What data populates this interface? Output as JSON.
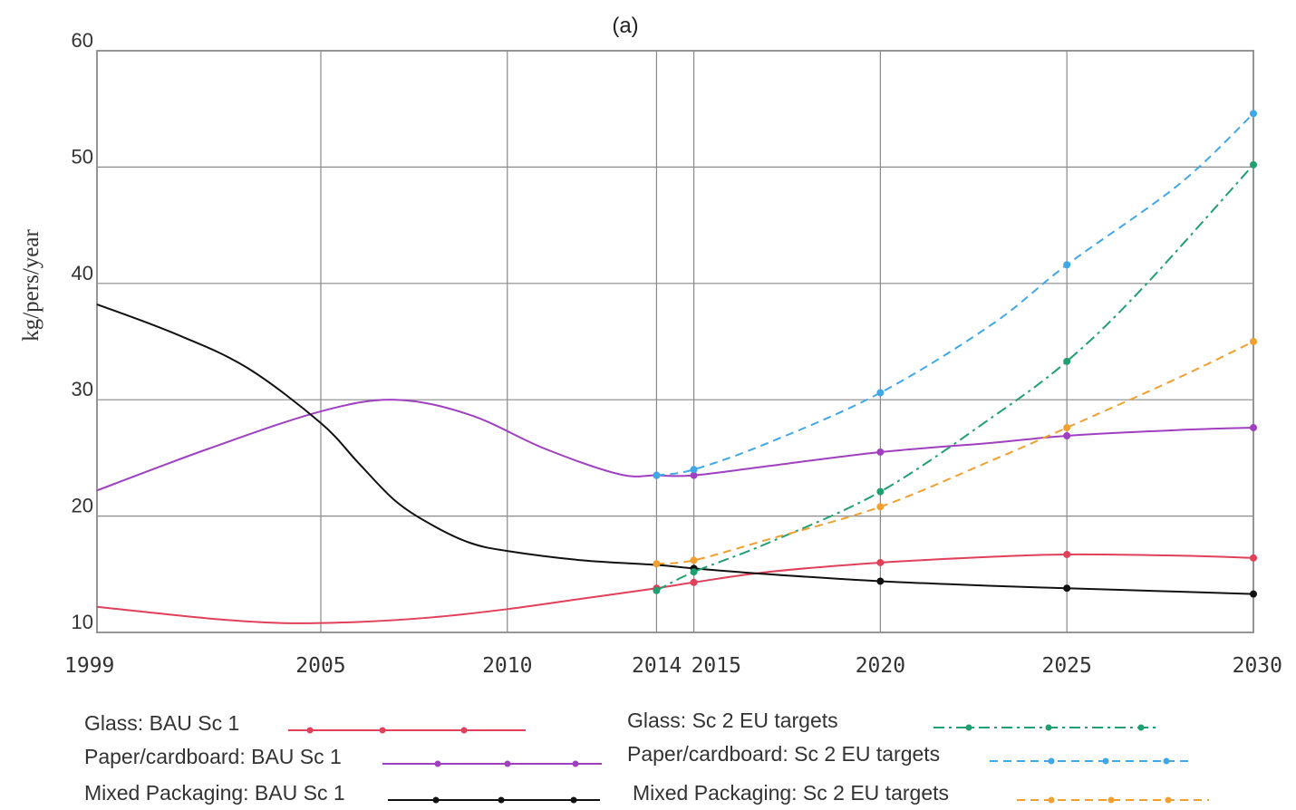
{
  "chart_data": {
    "type": "line",
    "title": "(a)",
    "ylabel": "kg/pers/year",
    "xlabel": "",
    "xlim": [
      1999,
      2030
    ],
    "ylim": [
      10,
      60
    ],
    "x_ticks": [
      1999,
      2005,
      2010,
      2014,
      2015,
      2020,
      2025,
      2030
    ],
    "y_ticks": [
      10,
      20,
      30,
      40,
      50,
      60
    ],
    "grid": true,
    "legend_placement": "bottom",
    "series": [
      {
        "name": "Glass: BAU Sc 1",
        "color": "#e0405a",
        "style": "solid",
        "x": [
          1999,
          2002,
          2004,
          2006,
          2008,
          2010,
          2012,
          2014,
          2015,
          2017,
          2020,
          2023,
          2025,
          2028,
          2030
        ],
        "y": [
          12.2,
          11.2,
          10.8,
          10.9,
          11.3,
          12.0,
          12.9,
          13.8,
          14.3,
          15.2,
          16.0,
          16.5,
          16.7,
          16.6,
          16.4
        ],
        "markers_at": [
          2014,
          2015,
          2020,
          2025,
          2030
        ]
      },
      {
        "name": "Paper/cardboard: BAU Sc 1",
        "color": "#a040c0",
        "style": "solid",
        "x": [
          1999,
          2002,
          2005,
          2007,
          2009,
          2011,
          2013,
          2014,
          2015,
          2017,
          2020,
          2023,
          2025,
          2028,
          2030
        ],
        "y": [
          22.2,
          25.8,
          29.0,
          30.0,
          28.7,
          25.8,
          23.6,
          23.5,
          23.5,
          24.3,
          25.5,
          26.3,
          26.9,
          27.4,
          27.6
        ],
        "markers_at": [
          2014,
          2015,
          2020,
          2025,
          2030
        ]
      },
      {
        "name": "Mixed Packaging: BAU Sc 1",
        "color": "#111111",
        "style": "solid",
        "x": [
          1999,
          2001,
          2003,
          2005,
          2006,
          2007,
          2008,
          2009,
          2010,
          2012,
          2014,
          2015,
          2017,
          2020,
          2023,
          2025,
          2028,
          2030
        ],
        "y": [
          38.2,
          35.8,
          32.8,
          28.0,
          24.6,
          21.3,
          19.2,
          17.7,
          17.0,
          16.2,
          15.8,
          15.5,
          15.0,
          14.4,
          14.0,
          13.8,
          13.5,
          13.3
        ],
        "markers_at": [
          2015,
          2020,
          2025,
          2030
        ]
      },
      {
        "name": "Glass: Sc 2 EU targets",
        "color": "#20a070",
        "style": "dashdot",
        "x": [
          2014,
          2015,
          2017,
          2020,
          2023,
          2025,
          2027,
          2030
        ],
        "y": [
          13.6,
          15.2,
          17.7,
          22.1,
          28.5,
          33.3,
          39.5,
          50.2
        ],
        "markers_at": [
          2014,
          2015,
          2020,
          2025,
          2030
        ]
      },
      {
        "name": "Paper/cardboard: Sc 2 EU targets",
        "color": "#40a8e8",
        "style": "dashed",
        "x": [
          2014,
          2015,
          2017,
          2020,
          2023,
          2025,
          2028,
          2030
        ],
        "y": [
          23.5,
          24.0,
          26.3,
          30.6,
          36.5,
          41.6,
          48.5,
          54.6
        ],
        "markers_at": [
          2014,
          2015,
          2020,
          2025,
          2030
        ]
      },
      {
        "name": "Mixed Packaging: Sc 2  EU targets",
        "color": "#f0a030",
        "style": "dashed",
        "x": [
          2014,
          2015,
          2017,
          2020,
          2023,
          2025,
          2028,
          2030
        ],
        "y": [
          15.9,
          16.2,
          18.0,
          20.8,
          24.8,
          27.6,
          31.9,
          35.0
        ],
        "markers_at": [
          2014,
          2015,
          2020,
          2025,
          2030
        ]
      }
    ]
  }
}
